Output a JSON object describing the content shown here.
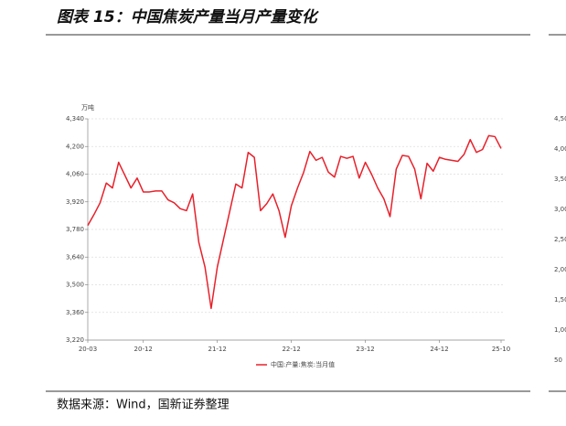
{
  "title": "图表 15：中国焦炭产量当月产量变化",
  "source": "数据来源：Wind，国新证券整理",
  "cropped_axis_labels": [
    "4,50",
    "4,00",
    "3,50",
    "3,00",
    "2,50",
    "2,00",
    "1,50",
    "1,00",
    "50"
  ],
  "chart_data": {
    "type": "line",
    "y_unit": "万吨",
    "categories": [
      "20-03",
      null,
      null,
      null,
      null,
      null,
      null,
      null,
      null,
      "20-12",
      null,
      null,
      null,
      null,
      null,
      null,
      null,
      null,
      null,
      null,
      null,
      "21-12",
      null,
      null,
      null,
      null,
      null,
      null,
      null,
      null,
      null,
      null,
      null,
      "22-12",
      null,
      null,
      null,
      null,
      null,
      null,
      null,
      null,
      null,
      null,
      null,
      "23-12",
      null,
      null,
      null,
      null,
      null,
      null,
      null,
      null,
      null,
      null,
      null,
      "24-12",
      null,
      null,
      null,
      null,
      null,
      null,
      null,
      null,
      null,
      "25-10"
    ],
    "series": [
      {
        "name": "中国:产量:焦炭:当月值",
        "color": "#e8202a",
        "values": [
          3800,
          3855,
          3915,
          4015,
          3990,
          4120,
          4055,
          3990,
          4040,
          3970,
          3970,
          3975,
          3975,
          3930,
          3915,
          3885,
          3875,
          3960,
          3715,
          3590,
          3380,
          3590,
          3730,
          3870,
          4010,
          3990,
          4170,
          4145,
          3875,
          3910,
          3960,
          3875,
          3740,
          3900,
          3990,
          4070,
          4175,
          4130,
          4145,
          4070,
          4045,
          4150,
          4140,
          4150,
          4040,
          4120,
          4060,
          3990,
          3935,
          3845,
          4085,
          4155,
          4150,
          4085,
          3935,
          4115,
          4075,
          4145,
          4135,
          4130,
          4125,
          4160,
          4235,
          4170,
          4185,
          4255,
          4250,
          4190
        ]
      }
    ],
    "ylim": [
      3220,
      4340
    ],
    "yticks": [
      {
        "value": 3220,
        "label": "3,220"
      },
      {
        "value": 3360,
        "label": "3,360"
      },
      {
        "value": 3500,
        "label": "3,500"
      },
      {
        "value": 3640,
        "label": "3,640"
      },
      {
        "value": 3780,
        "label": "3,780"
      },
      {
        "value": 3920,
        "label": "3,920"
      },
      {
        "value": 4060,
        "label": "4,060"
      },
      {
        "value": 4200,
        "label": "4,200"
      },
      {
        "value": 4340,
        "label": "4,340"
      }
    ],
    "grid": true
  }
}
